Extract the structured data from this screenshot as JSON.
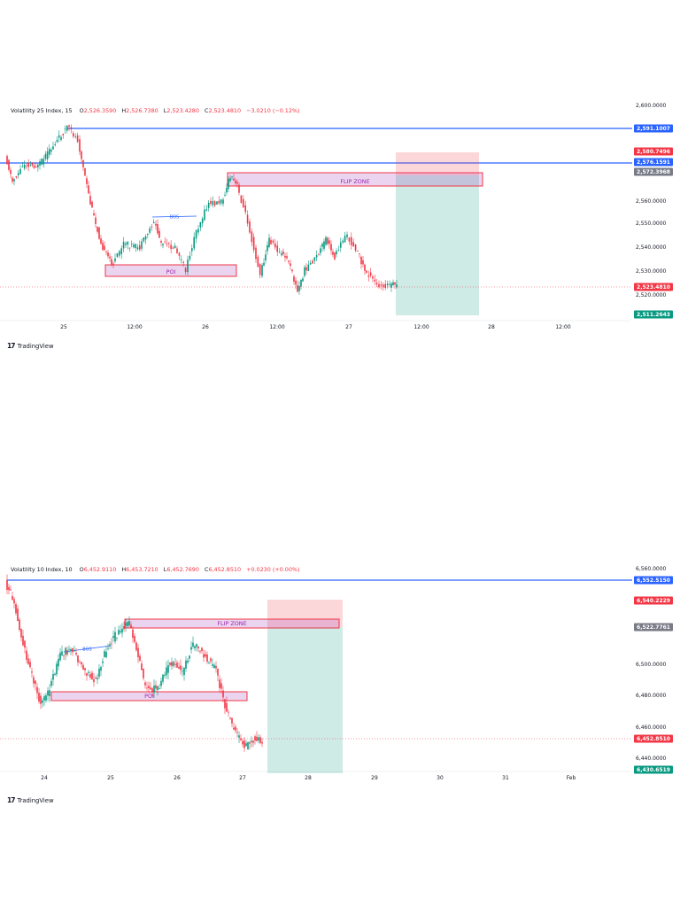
{
  "charts": [
    {
      "symbol": "Volatility 25 Index",
      "interval": "15",
      "ohlc": {
        "O": "2,526.3590",
        "H": "2,526.7380",
        "L": "2,523.4280",
        "C": "2,523.4810",
        "change": "−3.0210 (−0.12%)"
      },
      "labels": {
        "o": "O",
        "h": "H",
        "l": "L",
        "c": "C"
      },
      "flip_zone_label": "FLIP ZONE",
      "poi_label": "POI",
      "bos_label": "BOS",
      "price_ticks": [
        "2,600.0000",
        "2,570.0000",
        "2,560.0000",
        "2,550.0000",
        "2,540.0000",
        "2,530.0000",
        "2,520.0000"
      ],
      "time_ticks": [
        "25",
        "12:00",
        "26",
        "12:00",
        "27",
        "12:00",
        "28",
        "12:00"
      ],
      "price_tags": [
        {
          "text": "2,591.1007",
          "color": "#2962ff"
        },
        {
          "text": "2,580.7496",
          "color": "#f23645"
        },
        {
          "text": "2,576.1591",
          "color": "#2962ff"
        },
        {
          "text": "2,572.3968",
          "color": "#787b86"
        },
        {
          "text": "2,523.4810",
          "color": "#f23645"
        },
        {
          "text": "2,511.2643",
          "color": "#089981"
        }
      ]
    },
    {
      "symbol": "Volatility 10 Index",
      "interval": "10",
      "ohlc": {
        "O": "6,452.9110",
        "H": "6,453.7210",
        "L": "6,452.7690",
        "C": "6,452.8510",
        "change": "+0.0230 (+0.00%)"
      },
      "labels": {
        "o": "O",
        "h": "H",
        "l": "L",
        "c": "C"
      },
      "flip_zone_label": "FLIP ZONE",
      "poi_label": "POI",
      "bos_label": "BOS",
      "price_ticks": [
        "6,560.0000",
        "6,500.0000",
        "6,480.0000",
        "6,460.0000",
        "6,440.0000"
      ],
      "time_ticks": [
        "24",
        "25",
        "26",
        "27",
        "28",
        "29",
        "30",
        "31",
        "Feb"
      ],
      "price_tags": [
        {
          "text": "6,552.5150",
          "color": "#2962ff"
        },
        {
          "text": "6,540.2229",
          "color": "#f23645"
        },
        {
          "text": "6,522.7761",
          "color": "#787b86"
        },
        {
          "text": "6,452.8510",
          "color": "#f23645"
        },
        {
          "text": "6,430.6519",
          "color": "#089981"
        }
      ]
    }
  ],
  "branding": "TradingView",
  "colors": {
    "up": "#089981",
    "down": "#f23645",
    "level": "#2962ff",
    "zone": "#9c27b0"
  }
}
